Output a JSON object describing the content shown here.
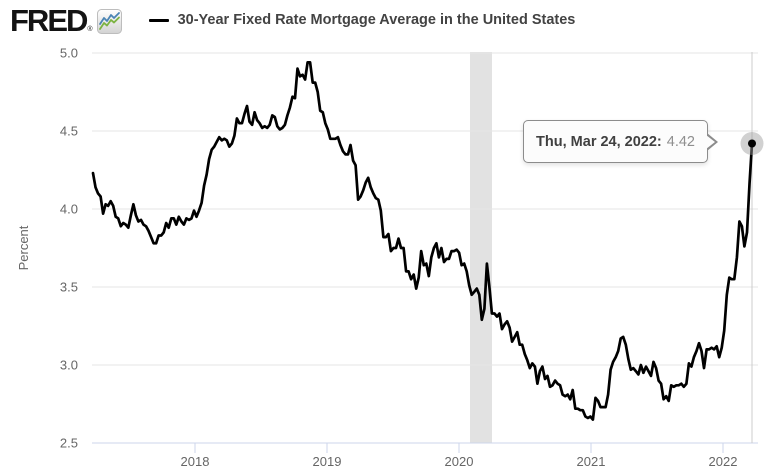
{
  "header": {
    "logo_text": "FRED",
    "logo_registered": "®",
    "legend": {
      "label": "30-Year Fixed Rate Mortgage Average in the United States"
    }
  },
  "tooltip": {
    "date_label": "Thu, Mar 24, 2022:",
    "value": "4.42"
  },
  "colors": {
    "line": "#000000",
    "gridline": "#e6e6e6",
    "axis": "#ccd6eb",
    "tick_label": "#666666",
    "recession_band": "#e2e2e2",
    "crosshair": "#cccccc",
    "halo": "#999999",
    "logo_blue": "#4a84b4",
    "logo_green": "#7cb342"
  },
  "chart_data": {
    "type": "line",
    "title": "30-Year Fixed Rate Mortgage Average in the United States",
    "ylabel": "Percent",
    "ylim": [
      2.5,
      5.0
    ],
    "yticks": [
      2.5,
      3.0,
      3.5,
      4.0,
      4.5,
      5.0
    ],
    "xticks": [
      2018,
      2019,
      2020,
      2021,
      2022
    ],
    "grid": "horizontal",
    "legend_position": "top",
    "recession_shading": {
      "start": "2020-02",
      "end": "2020-04"
    },
    "highlighted_point": {
      "date": "2022-03-24",
      "value": 4.42
    },
    "series": [
      {
        "name": "30-Year Fixed Rate Mortgage Average in the United States",
        "frequency": "weekly",
        "start_date": "2017-03-23",
        "end_date": "2022-03-24",
        "values": [
          4.23,
          4.14,
          4.1,
          4.08,
          3.97,
          4.03,
          4.02,
          4.05,
          4.02,
          3.95,
          3.94,
          3.89,
          3.91,
          3.9,
          3.88,
          3.96,
          4.03,
          3.96,
          3.92,
          3.93,
          3.9,
          3.89,
          3.86,
          3.82,
          3.78,
          3.78,
          3.83,
          3.83,
          3.85,
          3.91,
          3.88,
          3.94,
          3.94,
          3.9,
          3.95,
          3.92,
          3.9,
          3.94,
          3.93,
          3.94,
          3.99,
          3.95,
          3.99,
          4.04,
          4.15,
          4.22,
          4.32,
          4.38,
          4.4,
          4.43,
          4.46,
          4.44,
          4.45,
          4.44,
          4.4,
          4.42,
          4.47,
          4.58,
          4.55,
          4.55,
          4.61,
          4.66,
          4.56,
          4.54,
          4.62,
          4.57,
          4.55,
          4.52,
          4.53,
          4.52,
          4.54,
          4.6,
          4.59,
          4.53,
          4.51,
          4.52,
          4.54,
          4.6,
          4.65,
          4.72,
          4.71,
          4.9,
          4.85,
          4.86,
          4.83,
          4.94,
          4.94,
          4.81,
          4.81,
          4.75,
          4.63,
          4.62,
          4.55,
          4.51,
          4.45,
          4.45,
          4.45,
          4.46,
          4.41,
          4.37,
          4.35,
          4.35,
          4.41,
          4.31,
          4.28,
          4.06,
          4.08,
          4.12,
          4.17,
          4.2,
          4.14,
          4.1,
          4.07,
          4.06,
          3.99,
          3.82,
          3.82,
          3.84,
          3.73,
          3.75,
          3.75,
          3.81,
          3.75,
          3.75,
          3.6,
          3.6,
          3.55,
          3.58,
          3.49,
          3.56,
          3.73,
          3.64,
          3.65,
          3.57,
          3.69,
          3.75,
          3.78,
          3.69,
          3.75,
          3.66,
          3.68,
          3.68,
          3.73,
          3.73,
          3.74,
          3.72,
          3.64,
          3.65,
          3.6,
          3.51,
          3.45,
          3.47,
          3.49,
          3.45,
          3.29,
          3.36,
          3.65,
          3.5,
          3.33,
          3.33,
          3.31,
          3.33,
          3.23,
          3.26,
          3.28,
          3.24,
          3.15,
          3.18,
          3.21,
          3.13,
          3.13,
          3.07,
          3.03,
          2.98,
          3.01,
          2.99,
          2.88,
          2.96,
          2.99,
          2.91,
          2.93,
          2.86,
          2.87,
          2.9,
          2.88,
          2.87,
          2.81,
          2.8,
          2.81,
          2.78,
          2.84,
          2.72,
          2.72,
          2.71,
          2.71,
          2.67,
          2.66,
          2.67,
          2.65,
          2.79,
          2.77,
          2.73,
          2.73,
          2.73,
          2.81,
          2.97,
          3.02,
          3.05,
          3.09,
          3.17,
          3.18,
          3.13,
          3.04,
          2.97,
          2.98,
          2.96,
          2.94,
          3.0,
          2.95,
          2.99,
          2.96,
          2.93,
          3.02,
          2.98,
          2.9,
          2.88,
          2.78,
          2.8,
          2.77,
          2.87,
          2.86,
          2.87,
          2.87,
          2.88,
          2.86,
          2.88,
          3.01,
          2.99,
          3.05,
          3.09,
          3.14,
          3.09,
          2.98,
          3.1,
          3.1,
          3.11,
          3.1,
          3.12,
          3.05,
          3.11,
          3.22,
          3.45,
          3.56,
          3.55,
          3.55,
          3.69,
          3.92,
          3.89,
          3.76,
          3.85,
          4.16,
          4.42
        ]
      }
    ]
  }
}
